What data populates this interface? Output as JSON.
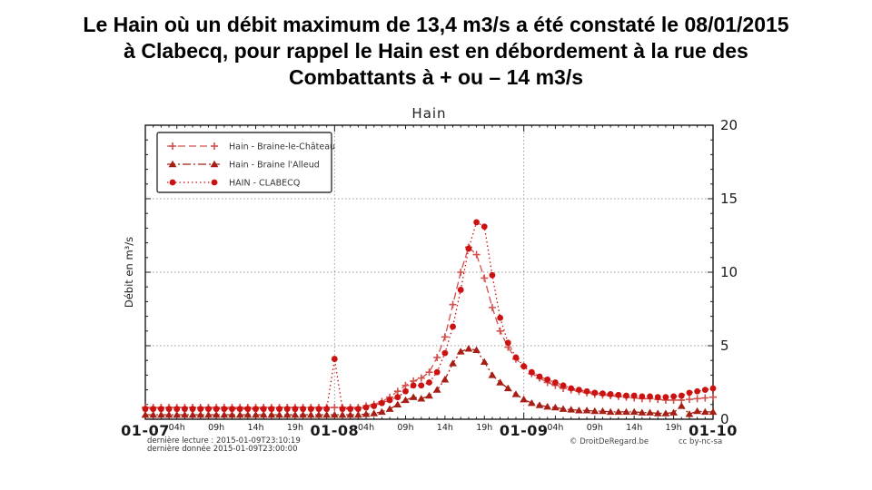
{
  "slide": {
    "title_lines": [
      "Le Hain où un débit maximum de 13,4 m3/s a été constaté le 08/01/2015",
      "à Clabecq, pour rappel le Hain est en débordement à la rue des",
      "Combattants à + ou – 14 m3/s"
    ]
  },
  "chart_data": {
    "type": "line",
    "title": "Hain",
    "ylabel": "Débit en m³/s",
    "ylim": [
      0,
      20
    ],
    "yticks": [
      0,
      5,
      10,
      15,
      20
    ],
    "y_minor_step": 1,
    "grid": {
      "horizontal_values": [
        5,
        10,
        15
      ],
      "vertical_hours": [
        24,
        48
      ],
      "color": "#9a9a9a"
    },
    "axis_color": "#1a1a1a",
    "x_unit": "hours since 2015-01-07 00:00",
    "x_range_hours": [
      0,
      72
    ],
    "day_ticks": [
      {
        "hour": 0,
        "label": "01-07"
      },
      {
        "hour": 24,
        "label": "01-08"
      },
      {
        "hour": 48,
        "label": "01-09"
      },
      {
        "hour": 72,
        "label": "01-10"
      }
    ],
    "hour_labels": [
      {
        "offset": 4,
        "label": "04h"
      },
      {
        "offset": 9,
        "label": "09h"
      },
      {
        "offset": 14,
        "label": "14h"
      },
      {
        "offset": 19,
        "label": "19h"
      }
    ],
    "legend_position": "upper-left",
    "series": [
      {
        "id": "braine-le-chateau",
        "name": "Hain - Braine-le-Château",
        "marker": "plus",
        "line_style": "dashed",
        "color": "#d14f4c",
        "values": [
          0.8,
          0.8,
          0.8,
          0.8,
          0.8,
          0.8,
          0.8,
          0.8,
          0.8,
          0.8,
          0.8,
          0.8,
          0.8,
          0.8,
          0.8,
          0.8,
          0.8,
          0.8,
          0.8,
          0.8,
          0.8,
          0.8,
          0.8,
          0.8,
          0.8,
          0.8,
          0.8,
          0.8,
          0.9,
          1.0,
          1.2,
          1.5,
          1.9,
          2.3,
          2.6,
          2.8,
          3.2,
          4.2,
          5.6,
          7.8,
          10.0,
          11.7,
          11.2,
          9.6,
          7.6,
          6.0,
          4.9,
          4.1,
          3.6,
          3.1,
          2.8,
          2.5,
          2.3,
          2.1,
          2.0,
          1.9,
          1.8,
          1.7,
          1.65,
          1.6,
          1.55,
          1.5,
          1.45,
          1.4,
          1.4,
          1.35,
          1.3,
          1.3,
          1.3,
          1.35,
          1.4,
          1.45,
          1.5
        ]
      },
      {
        "id": "braine-l-alleud",
        "name": "Hain - Braine l'Alleud",
        "marker": "triangle",
        "line_style": "dash-dot",
        "color": "#a61e14",
        "values": [
          0.3,
          0.3,
          0.3,
          0.3,
          0.3,
          0.3,
          0.3,
          0.3,
          0.3,
          0.3,
          0.3,
          0.3,
          0.3,
          0.3,
          0.3,
          0.3,
          0.3,
          0.3,
          0.3,
          0.3,
          0.3,
          0.3,
          0.3,
          0.3,
          0.3,
          0.3,
          0.3,
          0.3,
          0.35,
          0.4,
          0.5,
          0.7,
          1.0,
          1.3,
          1.5,
          1.4,
          1.6,
          2.0,
          2.7,
          3.8,
          4.6,
          4.8,
          4.7,
          3.9,
          3.0,
          2.5,
          2.1,
          1.7,
          1.35,
          1.1,
          0.95,
          0.85,
          0.8,
          0.7,
          0.65,
          0.6,
          0.6,
          0.55,
          0.55,
          0.5,
          0.5,
          0.5,
          0.5,
          0.45,
          0.45,
          0.4,
          0.4,
          0.45,
          0.9,
          0.35,
          0.55,
          0.5,
          0.5
        ]
      },
      {
        "id": "clabecq",
        "name": "HAIN - CLABECQ",
        "marker": "circle",
        "line_style": "dotted",
        "color": "#cc1111",
        "values": [
          0.7,
          0.7,
          0.7,
          0.7,
          0.7,
          0.7,
          0.7,
          0.7,
          0.7,
          0.7,
          0.7,
          0.7,
          0.7,
          0.7,
          0.7,
          0.7,
          0.7,
          0.7,
          0.7,
          0.7,
          0.7,
          0.7,
          0.7,
          0.7,
          4.1,
          0.7,
          0.7,
          0.7,
          0.8,
          0.9,
          1.1,
          1.3,
          1.5,
          1.9,
          2.3,
          2.3,
          2.5,
          3.2,
          4.5,
          6.3,
          8.8,
          11.6,
          13.4,
          13.1,
          9.8,
          6.9,
          5.2,
          4.2,
          3.6,
          3.2,
          2.9,
          2.7,
          2.5,
          2.3,
          2.1,
          2.0,
          1.9,
          1.8,
          1.75,
          1.7,
          1.65,
          1.6,
          1.6,
          1.55,
          1.55,
          1.5,
          1.5,
          1.55,
          1.6,
          1.8,
          1.9,
          2.0,
          2.1
        ]
      }
    ],
    "max_value_annotated": "13,4 m3/s le 08/01/2015 (Clabecq)",
    "footer": {
      "last_reading": "dernière lecture : 2015-01-09T23:10:19",
      "last_data": "dernière donnée  2015-01-09T23:00:00",
      "copyright": "© DroitDeRegard.be",
      "license": "cc by-nc-sa"
    }
  }
}
